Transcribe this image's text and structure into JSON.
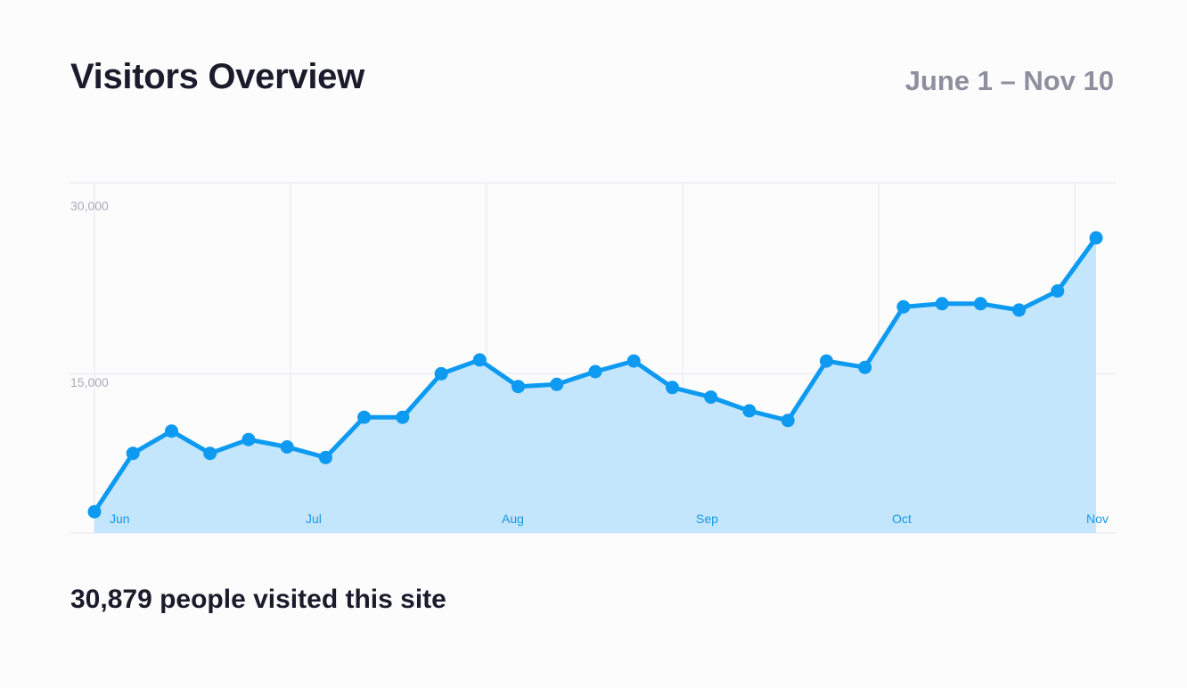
{
  "header": {
    "title": "Visitors Overview",
    "date_range": "June 1 – Nov 10"
  },
  "summary": {
    "text": "30,879 people visited this site"
  },
  "colors": {
    "line": "#0d9af0",
    "area": "#c3e6fd",
    "grid": "#ecebf4",
    "x_tick_text": "#1796e8",
    "y_tick_text": "#a9abb8"
  },
  "chart_data": {
    "type": "area",
    "title": "",
    "xlabel": "",
    "ylabel": "",
    "ylim": [
      0,
      33000
    ],
    "y_ticks": [
      {
        "value": 15000,
        "label": "15,000"
      },
      {
        "value": 30000,
        "label": "30,000"
      }
    ],
    "x_ticks": [
      "Jun",
      "Jul",
      "Aug",
      "Sep",
      "Oct",
      "Nov"
    ],
    "grid": true,
    "legend": "none",
    "series": [
      {
        "values": [
          2000,
          7500,
          9600,
          7500,
          8800,
          8100,
          7100,
          10900,
          10900,
          15000,
          16300,
          13800,
          14000,
          15200,
          16200,
          13700,
          12800,
          11500,
          10600,
          16200,
          15600,
          21300,
          21600,
          21600,
          21000,
          22800,
          27800
        ]
      }
    ]
  }
}
